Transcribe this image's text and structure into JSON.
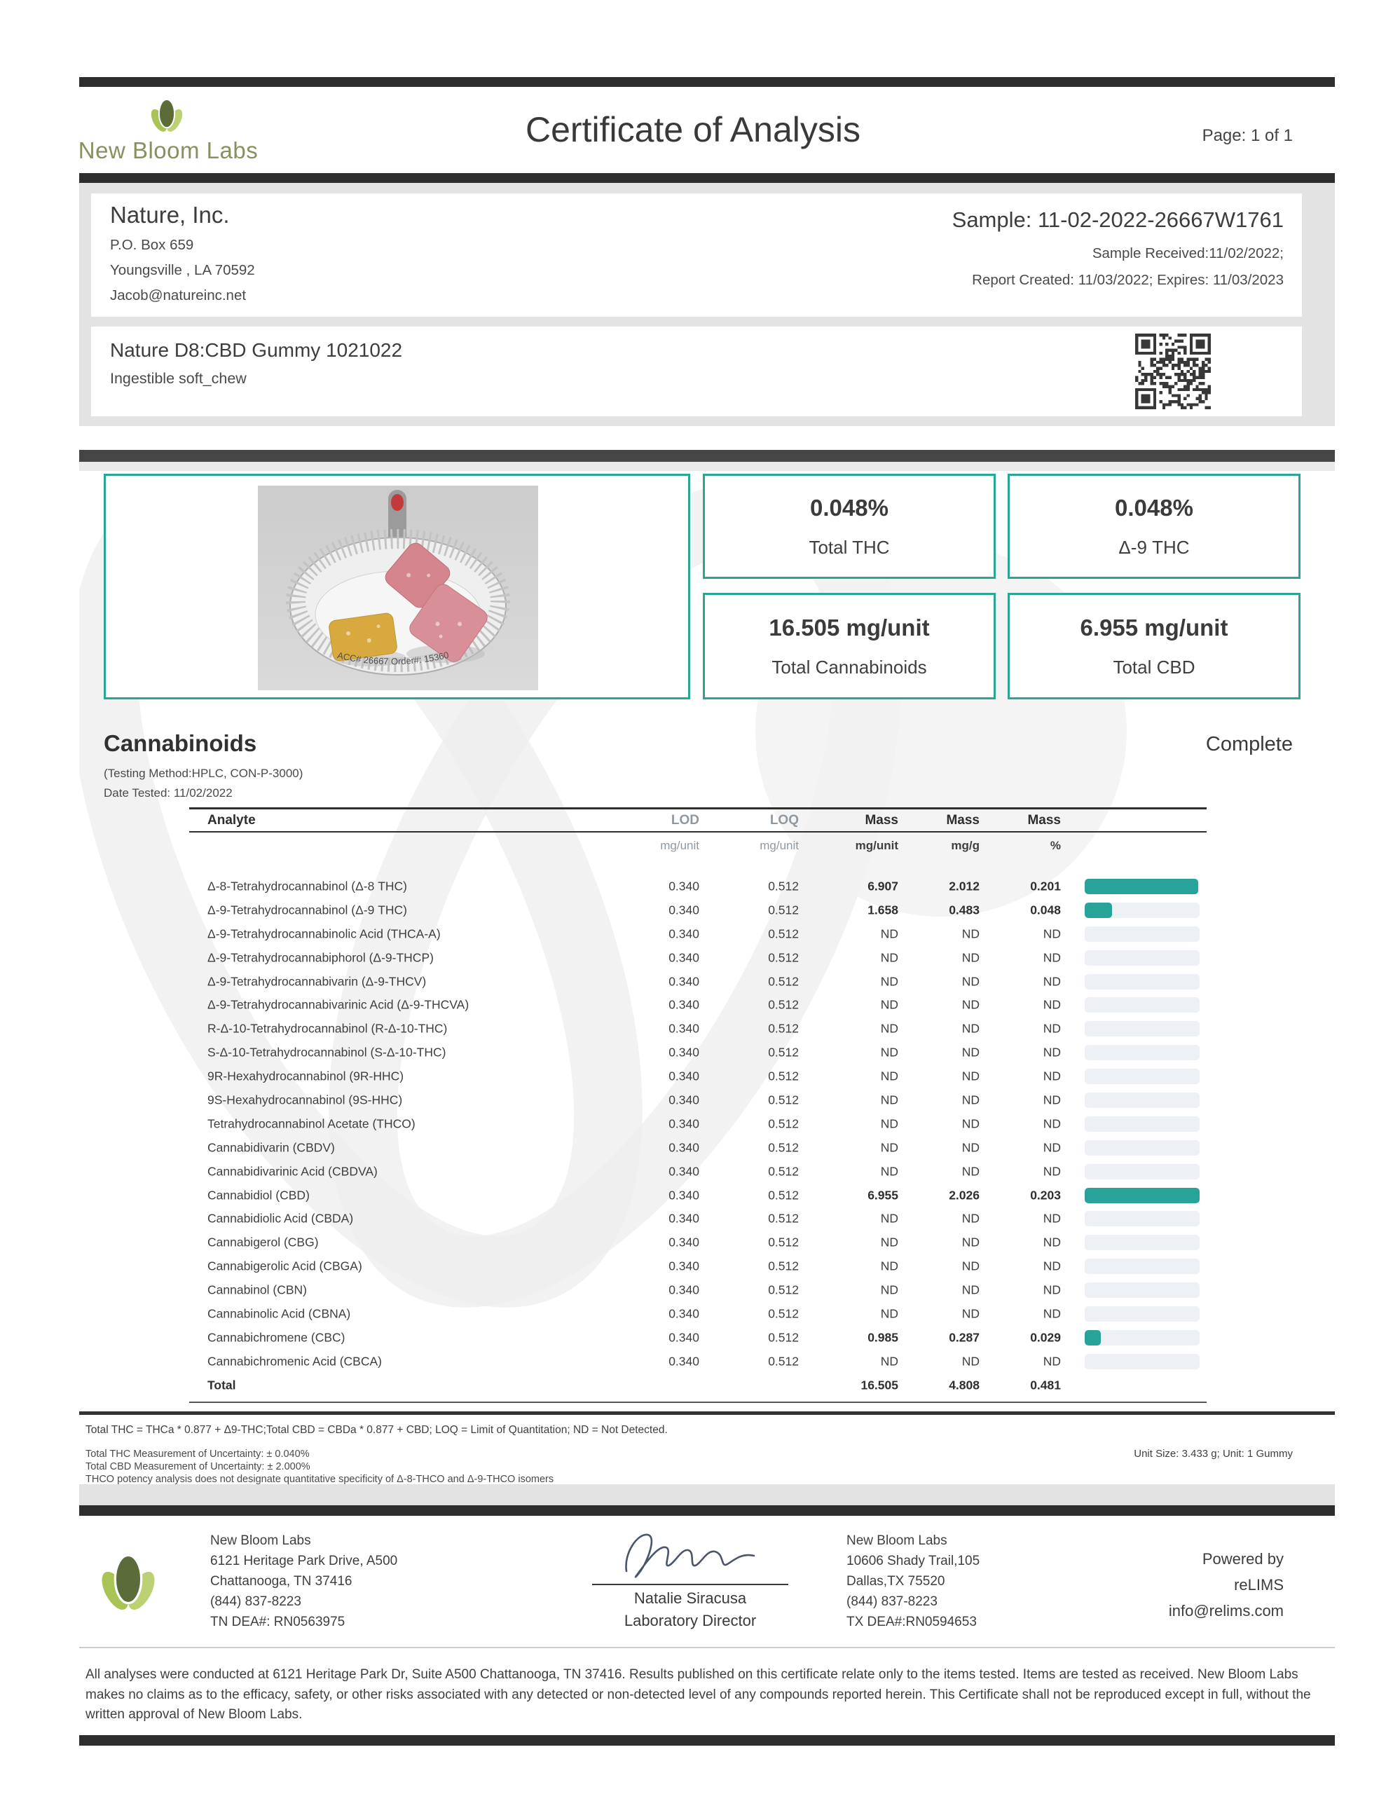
{
  "colors": {
    "accent": "#27a39a",
    "accent_border": "#2aa695",
    "bar_track": "#edf0f4",
    "band_gray": "#e3e3e3",
    "dark_bar": "#2d2d2d",
    "ink": "#3c3c3c",
    "muted_gray": "#9099a2",
    "logo_dark_green": "#5c6c39",
    "logo_mid_green": "#a9c355",
    "logo_light_green": "#bcd173",
    "logo_text_olive": "#87905f"
  },
  "header": {
    "lab_name": "New Bloom Labs",
    "title": "Certificate of Analysis",
    "page": "Page: 1 of 1"
  },
  "client": {
    "name": "Nature, Inc.",
    "lines": [
      "P.O. Box 659",
      "Youngsville , LA 70592",
      "Jacob@natureinc.net"
    ]
  },
  "sample": {
    "id": "Sample: 11-02-2022-26667W1761",
    "received": "Sample Received:11/02/2022;",
    "created": "Report Created: 11/03/2022; Expires: 11/03/2023"
  },
  "product": {
    "name": "Nature D8:CBD Gummy 1021022",
    "form": "Ingestible soft_chew",
    "tin_text": "ACC# 26667  Order#: 15360"
  },
  "summary": [
    {
      "value": "0.048%",
      "label": "Total THC"
    },
    {
      "value": "0.048%",
      "label": "Δ-9 THC"
    },
    {
      "value": "16.505 mg/unit",
      "label": "Total Cannabinoids"
    },
    {
      "value": "6.955 mg/unit",
      "label": "Total CBD"
    }
  ],
  "cannabinoids": {
    "title": "Cannabinoids",
    "status": "Complete",
    "method": "(Testing Method:HPLC, CON-P-3000)",
    "date_tested": "Date Tested: 11/02/2022",
    "headers": {
      "analyte": "Analyte",
      "lod": "LOD",
      "loq": "LOQ",
      "mass1": "Mass",
      "mass2": "Mass",
      "mass3": "Mass"
    },
    "units": {
      "lod": "mg/unit",
      "loq": "mg/unit",
      "mass1": "mg/unit",
      "mass2": "mg/g",
      "mass3": "%"
    },
    "max_pct": 0.203,
    "rows": [
      {
        "analyte": "Δ-8-Tetrahydrocannabinol (Δ-8 THC)",
        "lod": "0.340",
        "loq": "0.512",
        "mg_unit": "6.907",
        "mg_g": "2.012",
        "pct": "0.201"
      },
      {
        "analyte": "Δ-9-Tetrahydrocannabinol (Δ-9 THC)",
        "lod": "0.340",
        "loq": "0.512",
        "mg_unit": "1.658",
        "mg_g": "0.483",
        "pct": "0.048"
      },
      {
        "analyte": "Δ-9-Tetrahydrocannabinolic Acid (THCA-A)",
        "lod": "0.340",
        "loq": "0.512",
        "mg_unit": "ND",
        "mg_g": "ND",
        "pct": "ND"
      },
      {
        "analyte": "Δ-9-Tetrahydrocannabiphorol (Δ-9-THCP)",
        "lod": "0.340",
        "loq": "0.512",
        "mg_unit": "ND",
        "mg_g": "ND",
        "pct": "ND"
      },
      {
        "analyte": "Δ-9-Tetrahydrocannabivarin (Δ-9-THCV)",
        "lod": "0.340",
        "loq": "0.512",
        "mg_unit": "ND",
        "mg_g": "ND",
        "pct": "ND"
      },
      {
        "analyte": "Δ-9-Tetrahydrocannabivarinic Acid (Δ-9-THCVA)",
        "lod": "0.340",
        "loq": "0.512",
        "mg_unit": "ND",
        "mg_g": "ND",
        "pct": "ND"
      },
      {
        "analyte": "R-Δ-10-Tetrahydrocannabinol (R-Δ-10-THC)",
        "lod": "0.340",
        "loq": "0.512",
        "mg_unit": "ND",
        "mg_g": "ND",
        "pct": "ND"
      },
      {
        "analyte": "S-Δ-10-Tetrahydrocannabinol (S-Δ-10-THC)",
        "lod": "0.340",
        "loq": "0.512",
        "mg_unit": "ND",
        "mg_g": "ND",
        "pct": "ND"
      },
      {
        "analyte": "9R-Hexahydrocannabinol (9R-HHC)",
        "lod": "0.340",
        "loq": "0.512",
        "mg_unit": "ND",
        "mg_g": "ND",
        "pct": "ND"
      },
      {
        "analyte": "9S-Hexahydrocannabinol (9S-HHC)",
        "lod": "0.340",
        "loq": "0.512",
        "mg_unit": "ND",
        "mg_g": "ND",
        "pct": "ND"
      },
      {
        "analyte": "Tetrahydrocannabinol Acetate (THCO)",
        "lod": "0.340",
        "loq": "0.512",
        "mg_unit": "ND",
        "mg_g": "ND",
        "pct": "ND"
      },
      {
        "analyte": "Cannabidivarin (CBDV)",
        "lod": "0.340",
        "loq": "0.512",
        "mg_unit": "ND",
        "mg_g": "ND",
        "pct": "ND"
      },
      {
        "analyte": "Cannabidivarinic Acid (CBDVA)",
        "lod": "0.340",
        "loq": "0.512",
        "mg_unit": "ND",
        "mg_g": "ND",
        "pct": "ND"
      },
      {
        "analyte": "Cannabidiol (CBD)",
        "lod": "0.340",
        "loq": "0.512",
        "mg_unit": "6.955",
        "mg_g": "2.026",
        "pct": "0.203"
      },
      {
        "analyte": "Cannabidiolic Acid (CBDA)",
        "lod": "0.340",
        "loq": "0.512",
        "mg_unit": "ND",
        "mg_g": "ND",
        "pct": "ND"
      },
      {
        "analyte": "Cannabigerol (CBG)",
        "lod": "0.340",
        "loq": "0.512",
        "mg_unit": "ND",
        "mg_g": "ND",
        "pct": "ND"
      },
      {
        "analyte": "Cannabigerolic Acid (CBGA)",
        "lod": "0.340",
        "loq": "0.512",
        "mg_unit": "ND",
        "mg_g": "ND",
        "pct": "ND"
      },
      {
        "analyte": "Cannabinol (CBN)",
        "lod": "0.340",
        "loq": "0.512",
        "mg_unit": "ND",
        "mg_g": "ND",
        "pct": "ND"
      },
      {
        "analyte": "Cannabinolic Acid (CBNA)",
        "lod": "0.340",
        "loq": "0.512",
        "mg_unit": "ND",
        "mg_g": "ND",
        "pct": "ND"
      },
      {
        "analyte": "Cannabichromene (CBC)",
        "lod": "0.340",
        "loq": "0.512",
        "mg_unit": "0.985",
        "mg_g": "0.287",
        "pct": "0.029"
      },
      {
        "analyte": "Cannabichromenic Acid (CBCA)",
        "lod": "0.340",
        "loq": "0.512",
        "mg_unit": "ND",
        "mg_g": "ND",
        "pct": "ND"
      }
    ],
    "total": {
      "label": "Total",
      "mg_unit": "16.505",
      "mg_g": "4.808",
      "pct": "0.481"
    },
    "footnote": "Total THC = THCa * 0.877 + Δ9-THC;Total CBD = CBDa * 0.877 + CBD; LOQ = Limit of Quantitation; ND = Not Detected.",
    "notes": [
      "Total THC Measurement of Uncertainty: ± 0.040%",
      "Total CBD Measurement of Uncertainty: ± 2.000%",
      "THCO potency analysis does not designate quantitative specificity of Δ-8-THCO and Δ-9-THCO isomers"
    ],
    "unit_info": "Unit Size: 3.433 g; Unit: 1 Gummy"
  },
  "footer": {
    "lab1": {
      "name": "New Bloom Labs",
      "lines": [
        "6121 Heritage Park Drive, A500",
        "Chattanooga, TN 37416",
        "(844) 837-8223",
        "TN DEA#: RN0563975"
      ]
    },
    "signer": {
      "name": "Natalie Siracusa",
      "title": "Laboratory Director"
    },
    "lab2": {
      "name": "New Bloom Labs",
      "lines": [
        "10606 Shady Trail,105",
        "Dallas,TX 75520",
        "(844) 837-8223",
        "TX DEA#:RN0594653"
      ]
    },
    "powered": {
      "line1": "Powered by",
      "line2": "reLIMS",
      "line3": "info@relims.com"
    }
  },
  "disclaimer": "All analyses were conducted at 6121 Heritage Park Dr, Suite A500 Chattanooga, TN 37416. Results published on this certificate relate only to the items tested. Items are tested as received. New Bloom Labs makes no claims as to the efficacy, safety, or other risks associated with any detected or non-detected level of any compounds reported herein. This Certificate shall not be reproduced except in full, without the written approval of New Bloom Labs."
}
